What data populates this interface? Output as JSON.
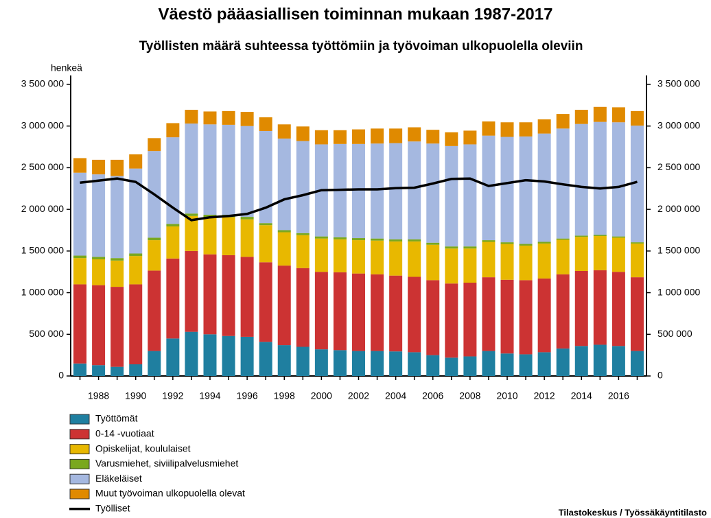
{
  "chart_data": {
    "type": "bar",
    "stacked": true,
    "title": "Väestö pääasiallisen toiminnan mukaan 1987-2017",
    "subtitle": "Työllisten määrä suhteessa työttömiin ja työvoiman ulkopuolella oleviin",
    "y_axis_label": "henkeä",
    "source": "Tilastokeskus / Työssäkäyntitilasto",
    "categories": [
      null,
      "1988",
      null,
      "1990",
      null,
      "1992",
      null,
      "1994",
      null,
      "1996",
      null,
      "1998",
      null,
      "2000",
      null,
      "2002",
      null,
      "2004",
      null,
      "2006",
      null,
      "2008",
      null,
      "2010",
      null,
      "2012",
      null,
      "2014",
      null,
      "2016",
      null
    ],
    "ylim": [
      0,
      3500000
    ],
    "yticks": [
      0,
      {
        "value": 500000,
        "label": "500 000"
      },
      {
        "value": 1000000,
        "label": "1 000 000"
      },
      {
        "value": 1500000,
        "label": "1 500 000"
      },
      {
        "value": 2000000,
        "label": "2 000 000"
      },
      {
        "value": 2500000,
        "label": "2 500 000"
      },
      {
        "value": 3000000,
        "label": "3 000 000"
      },
      {
        "value": 3500000,
        "label": "3 500 000"
      }
    ],
    "y2lim": [
      0,
      3500000
    ],
    "y2ticks": [
      0,
      {
        "value": 500000,
        "label": "500 000"
      },
      {
        "value": 1000000,
        "label": "1 000 000"
      },
      {
        "value": 1500000,
        "label": "1 500 000"
      },
      {
        "value": 2000000,
        "label": "2 000 000"
      },
      {
        "value": 2500000,
        "label": "2 500 000"
      },
      {
        "value": 3000000,
        "label": "3 000 000"
      },
      {
        "value": 3500000,
        "label": "3 500 000"
      }
    ],
    "grid": false,
    "legend": "bottom-left",
    "series": [
      {
        "name": "Työttömät",
        "color": "#1f7fa0",
        "values": [
          150000,
          130000,
          110000,
          140000,
          300000,
          450000,
          530000,
          500000,
          480000,
          470000,
          410000,
          370000,
          350000,
          320000,
          310000,
          300000,
          300000,
          295000,
          285000,
          250000,
          220000,
          235000,
          300000,
          270000,
          260000,
          285000,
          330000,
          360000,
          375000,
          360000,
          300000
        ]
      },
      {
        "name": "0-14 -vuotiaat",
        "color": "#cc3333",
        "values": [
          950000,
          960000,
          960000,
          960000,
          965000,
          960000,
          970000,
          960000,
          970000,
          960000,
          955000,
          955000,
          945000,
          930000,
          935000,
          930000,
          920000,
          910000,
          905000,
          900000,
          890000,
          885000,
          885000,
          885000,
          890000,
          885000,
          890000,
          900000,
          895000,
          890000,
          885000
        ]
      },
      {
        "name": "Opiskelijat, koululaiset",
        "color": "#e8b800",
        "values": [
          315000,
          310000,
          315000,
          340000,
          365000,
          385000,
          420000,
          445000,
          455000,
          450000,
          445000,
          400000,
          395000,
          400000,
          395000,
          400000,
          405000,
          410000,
          425000,
          425000,
          420000,
          410000,
          425000,
          430000,
          415000,
          420000,
          415000,
          410000,
          410000,
          410000,
          405000
        ]
      },
      {
        "name": "Varusmiehet, siviilipalvelusmiehet",
        "color": "#7aa81e",
        "values": [
          30000,
          30000,
          30000,
          30000,
          30000,
          30000,
          30000,
          30000,
          30000,
          30000,
          25000,
          25000,
          25000,
          25000,
          25000,
          25000,
          25000,
          25000,
          25000,
          25000,
          25000,
          25000,
          20000,
          20000,
          20000,
          20000,
          15000,
          15000,
          15000,
          15000,
          15000
        ]
      },
      {
        "name": "Eläkeläiset",
        "color": "#a5b8e0",
        "values": [
          995000,
          990000,
          985000,
          1020000,
          1040000,
          1040000,
          1080000,
          1085000,
          1080000,
          1090000,
          1105000,
          1100000,
          1105000,
          1105000,
          1120000,
          1130000,
          1140000,
          1155000,
          1175000,
          1190000,
          1205000,
          1225000,
          1255000,
          1265000,
          1290000,
          1300000,
          1320000,
          1340000,
          1355000,
          1370000,
          1400000
        ]
      },
      {
        "name": "Muut työvoiman ulkopuolella olevat",
        "color": "#e08a00",
        "values": [
          175000,
          175000,
          195000,
          170000,
          155000,
          170000,
          165000,
          155000,
          165000,
          170000,
          165000,
          170000,
          175000,
          170000,
          165000,
          175000,
          180000,
          175000,
          170000,
          165000,
          165000,
          165000,
          170000,
          175000,
          170000,
          170000,
          175000,
          170000,
          180000,
          180000,
          175000
        ]
      },
      {
        "name": "Työlliset",
        "type": "line",
        "color": "#000000",
        "values": [
          2320000,
          2345000,
          2370000,
          2330000,
          2180000,
          2020000,
          1870000,
          1905000,
          1920000,
          1945000,
          2020000,
          2120000,
          2170000,
          2230000,
          2235000,
          2240000,
          2240000,
          2255000,
          2260000,
          2310000,
          2365000,
          2370000,
          2280000,
          2315000,
          2350000,
          2335000,
          2300000,
          2270000,
          2250000,
          2270000,
          2330000
        ]
      }
    ]
  }
}
